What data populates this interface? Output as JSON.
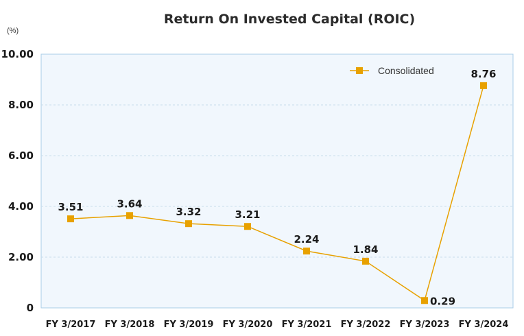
{
  "chart_data": {
    "type": "line",
    "title": "Return On Invested Capital (ROIC)",
    "unit_label": "(%)",
    "xlabel": "",
    "ylabel": "",
    "categories": [
      "FY 3/2017",
      "FY 3/2018",
      "FY 3/2019",
      "FY 3/2020",
      "FY 3/2021",
      "FY 3/2022",
      "FY 3/2023",
      "FY 3/2024"
    ],
    "series": [
      {
        "name": "Consolidated",
        "values": [
          3.51,
          3.64,
          3.32,
          3.21,
          2.24,
          1.84,
          0.29,
          8.76
        ],
        "labels": [
          "3.51",
          "3.64",
          "3.32",
          "3.21",
          "2.24",
          "1.84",
          "0.29",
          "8.76"
        ],
        "color": "#e8a100",
        "marker": "square"
      }
    ],
    "ylim": [
      0,
      10
    ],
    "yticks": [
      0,
      2,
      4,
      6,
      8,
      10
    ],
    "ytick_labels": [
      "0",
      "2.00",
      "4.00",
      "6.00",
      "8.00",
      "10.00"
    ],
    "grid": true,
    "legend_position": "top-right",
    "plot_background": "#f1f7fd",
    "plot_border": "#a9cde8",
    "grid_color": "#c9dcea"
  }
}
